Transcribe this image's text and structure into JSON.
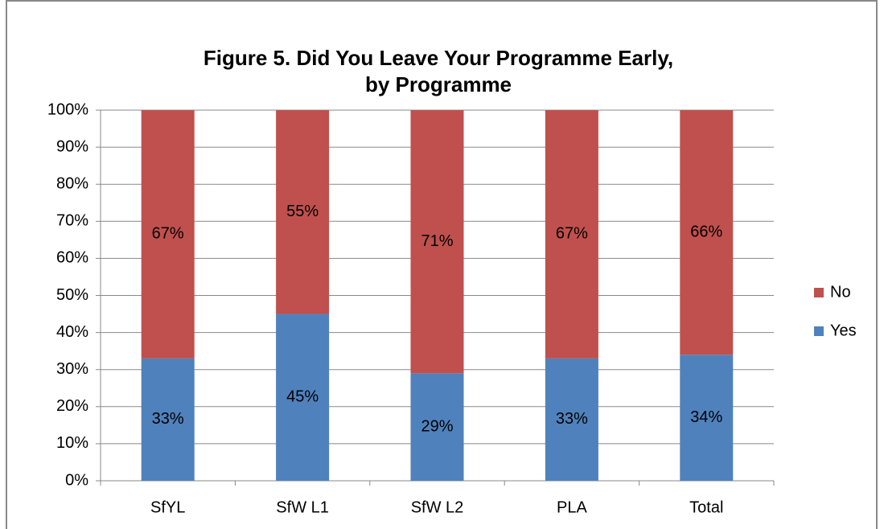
{
  "chart_data": {
    "type": "stacked_bar",
    "title": "Figure 5. Did You Leave Your Programme Early, by Programme",
    "categories": [
      "SfYL",
      "SfW L1",
      "SfW L2",
      "PLA",
      "Total"
    ],
    "series": [
      {
        "name": "Yes",
        "color": "#4f81bd",
        "values": [
          33,
          45,
          29,
          33,
          34
        ],
        "value_labels": [
          "33%",
          "45%",
          "29%",
          "33%",
          "34%"
        ]
      },
      {
        "name": "No",
        "color": "#c0504d",
        "values": [
          67,
          55,
          71,
          67,
          66
        ],
        "value_labels": [
          "67%",
          "55%",
          "71%",
          "67%",
          "66%"
        ]
      }
    ],
    "ylim": [
      0,
      100
    ],
    "yticks": [
      {
        "value": 0,
        "label": "0%"
      },
      {
        "value": 10,
        "label": "10%"
      },
      {
        "value": 20,
        "label": "20%"
      },
      {
        "value": 30,
        "label": "30%"
      },
      {
        "value": 40,
        "label": "40%"
      },
      {
        "value": 50,
        "label": "50%"
      },
      {
        "value": 60,
        "label": "60%"
      },
      {
        "value": 70,
        "label": "70%"
      },
      {
        "value": 80,
        "label": "80%"
      },
      {
        "value": 90,
        "label": "90%"
      },
      {
        "value": 100,
        "label": "100%"
      }
    ],
    "grid": true,
    "legend": "right"
  }
}
